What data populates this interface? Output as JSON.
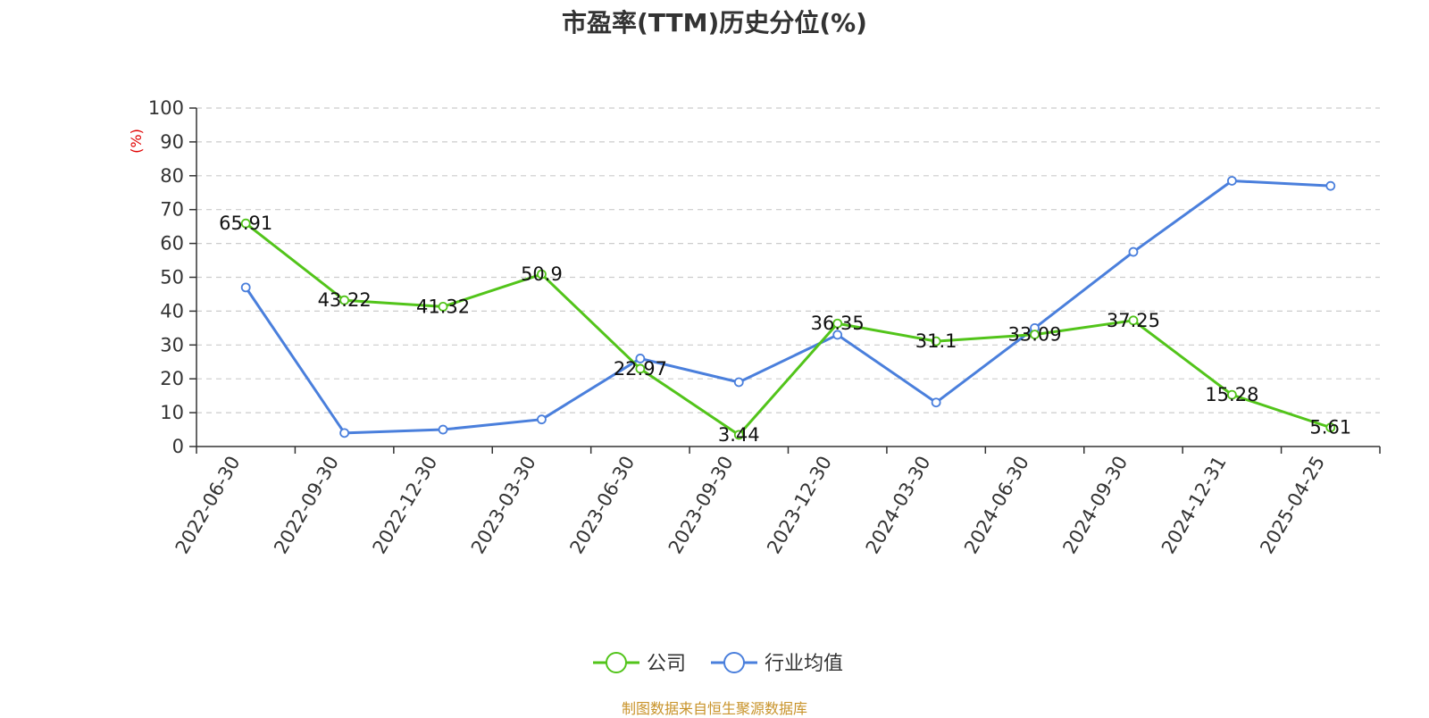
{
  "title": "市盈率(TTM)历史分位(%)",
  "source_note": "制图数据来自恒生聚源数据库",
  "chart_data": {
    "type": "line",
    "title": "市盈率(TTM)历史分位(%)",
    "xlabel": "",
    "ylabel": "(%)",
    "ylim": [
      0,
      100
    ],
    "yticks": [
      0,
      10,
      20,
      30,
      40,
      50,
      60,
      70,
      80,
      90,
      100
    ],
    "grid": true,
    "legend_position": "bottom-center",
    "categories": [
      "2022-06-30",
      "2022-09-30",
      "2022-12-30",
      "2023-03-30",
      "2023-06-30",
      "2023-09-30",
      "2023-12-30",
      "2024-03-30",
      "2024-06-30",
      "2024-09-30",
      "2024-12-31",
      "2025-04-25"
    ],
    "series": [
      {
        "name": "公司",
        "color": "#52c41a",
        "show_labels": true,
        "values": [
          65.91,
          43.22,
          41.32,
          50.9,
          22.97,
          3.44,
          36.35,
          31.1,
          33.09,
          37.25,
          15.28,
          5.61
        ]
      },
      {
        "name": "行业均值",
        "color": "#4a7fdc",
        "show_labels": false,
        "values": [
          47,
          4,
          5,
          8,
          26,
          19,
          33,
          13,
          35,
          57.5,
          78.5,
          77
        ]
      }
    ]
  }
}
